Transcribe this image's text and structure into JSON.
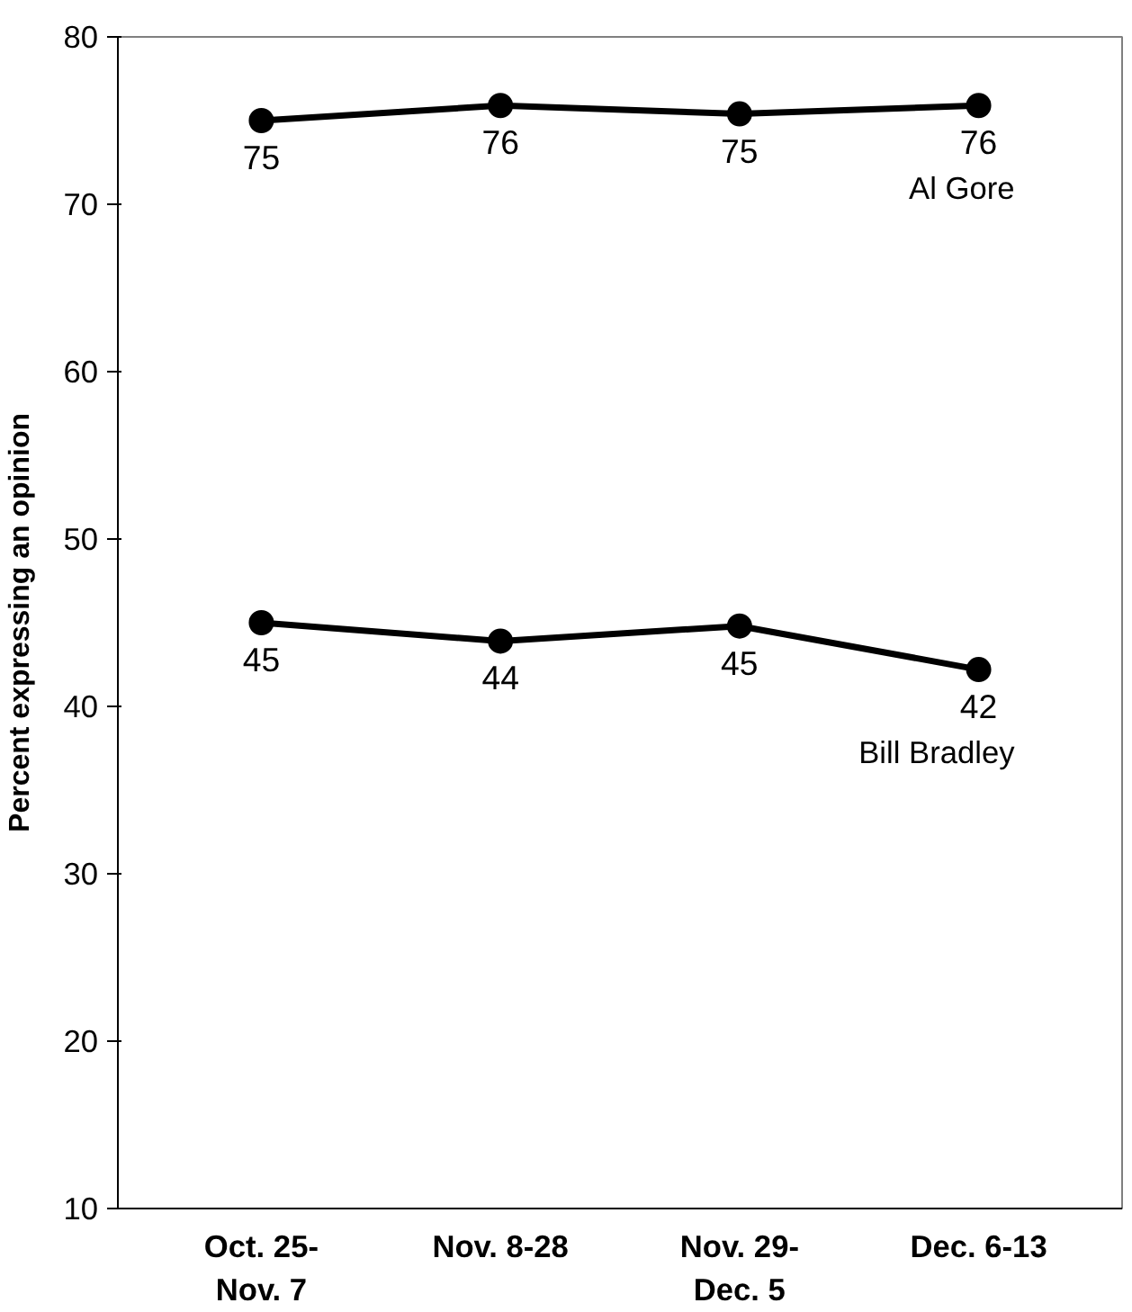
{
  "chart_data": {
    "type": "line",
    "ylabel": "Percent expressing an opinion",
    "categories": [
      "Oct. 25-\nNov. 7",
      "Nov. 8-28",
      "Nov. 29-\nDec. 5",
      "Dec. 6-13"
    ],
    "series": [
      {
        "name": "Al Gore",
        "color": "#000000",
        "values": [
          75,
          75.9,
          75.4,
          75.9
        ],
        "value_labels": [
          "75",
          "76",
          "75",
          "76"
        ]
      },
      {
        "name": "Bill Bradley",
        "color": "#000000",
        "values": [
          45,
          43.9,
          44.8,
          42.2
        ],
        "value_labels": [
          "45",
          "44",
          "45",
          "42"
        ]
      }
    ],
    "ylim": [
      10,
      80
    ],
    "yticks": [
      10,
      20,
      30,
      40,
      50,
      60,
      70,
      80
    ],
    "grid": false,
    "marker": "circle",
    "line_style": "solid"
  }
}
